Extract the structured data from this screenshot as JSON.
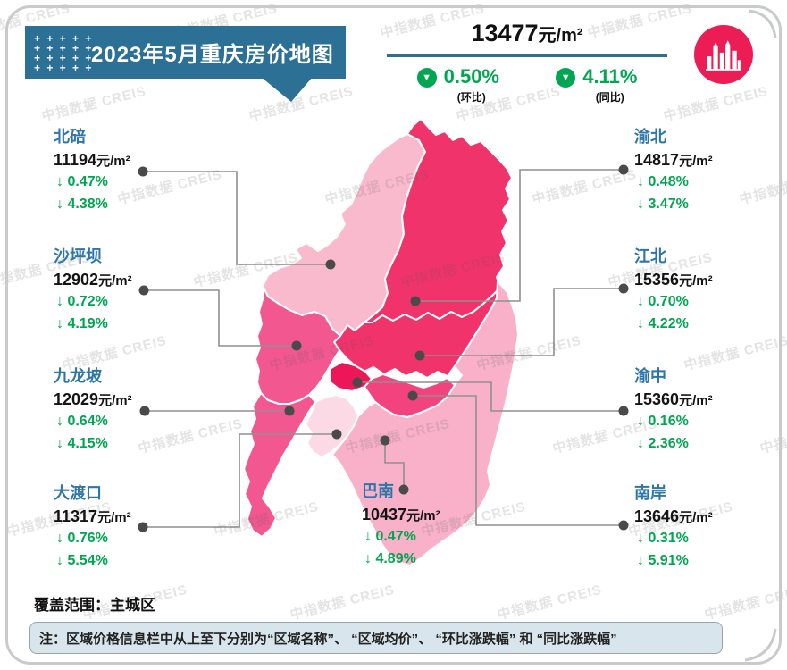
{
  "banner": {
    "title": "2023年5月重庆房价地图",
    "decor_plus": "+"
  },
  "summary": {
    "price": "13477",
    "unit": "元/m²",
    "mom": {
      "value": "0.50%",
      "label": "(环比)"
    },
    "yoy": {
      "value": "4.11%",
      "label": "(同比)"
    }
  },
  "symbols": {
    "down_arrow": "↓",
    "down_triangle": "▼"
  },
  "price_unit": "元/m²",
  "districts": [
    {
      "id": "beibei",
      "name": "北碚",
      "price": "11194",
      "mom": "0.47%",
      "yoy": "4.38%",
      "color": "#F9BACE"
    },
    {
      "id": "shapingba",
      "name": "沙坪坝",
      "price": "12902",
      "mom": "0.72%",
      "yoy": "4.19%",
      "color": "#F2588F"
    },
    {
      "id": "jiulongpo",
      "name": "九龙坡",
      "price": "12029",
      "mom": "0.64%",
      "yoy": "4.15%",
      "color": "#F2588F"
    },
    {
      "id": "dadukou",
      "name": "大渡口",
      "price": "11317",
      "mom": "0.76%",
      "yoy": "5.54%",
      "color": "#FBDAE6"
    },
    {
      "id": "yubei",
      "name": "渝北",
      "price": "14817",
      "mom": "0.48%",
      "yoy": "3.47%",
      "color": "#F1336C"
    },
    {
      "id": "jiangbei",
      "name": "江北",
      "price": "15356",
      "mom": "0.70%",
      "yoy": "4.22%",
      "color": "#F1336C"
    },
    {
      "id": "yuzhong",
      "name": "渝中",
      "price": "15360",
      "mom": "0.16%",
      "yoy": "2.36%",
      "color": "#EC1659"
    },
    {
      "id": "nanan",
      "name": "南岸",
      "price": "13646",
      "mom": "0.31%",
      "yoy": "5.91%",
      "color": "#F2437E"
    },
    {
      "id": "banan",
      "name": "巴南",
      "price": "10437",
      "mom": "0.47%",
      "yoy": "4.89%",
      "color": "#F8B1C9"
    }
  ],
  "coverage": "覆盖范围：主城区",
  "note": "注：区域价格信息栏中从上至下分别为“区域名称”、 “区域均价”、 “环比涨跌幅” 和 “同比涨跌幅”",
  "watermark": "中指数据 CREIS",
  "colors": {
    "banner_blue": "#2C7095",
    "district_name_blue": "#2E76A8",
    "decline_green": "#00A651",
    "logo_pink": "#EC1C54",
    "map_border": "#FFFFFF",
    "connector_gray": "#8f8f8f",
    "dot_gray": "#4A4A4A"
  }
}
